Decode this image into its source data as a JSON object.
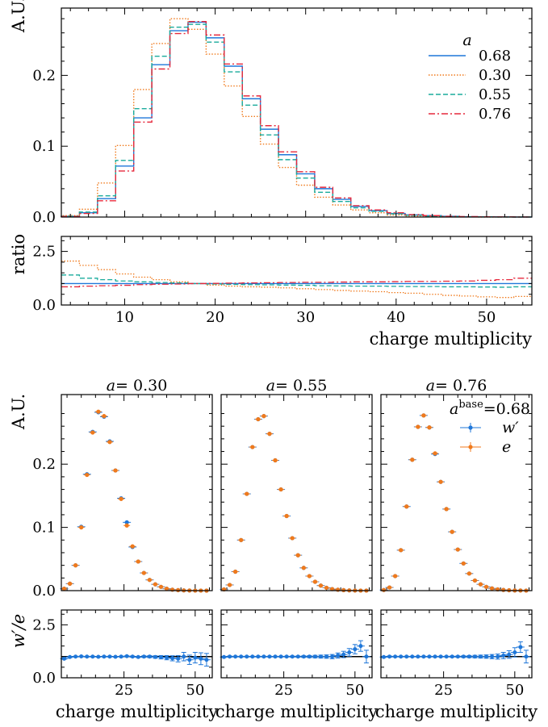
{
  "chart_data": [
    {
      "type": "line",
      "panel": "top",
      "title": "",
      "xlabel": "",
      "ylabel": "A.U.",
      "xlim": [
        3,
        55
      ],
      "ylim": [
        0,
        0.295
      ],
      "yticks": [
        "0.0",
        "0.1",
        "0.2"
      ],
      "ytick_values": [
        0,
        0.1,
        0.2
      ],
      "legend_title": "a",
      "legend_position": "top-right",
      "bin_edges": [
        3,
        5,
        7,
        9,
        11,
        13,
        15,
        17,
        19,
        21,
        23,
        25,
        27,
        29,
        31,
        33,
        35,
        37,
        39,
        41,
        43,
        45,
        47,
        49,
        51,
        53,
        55
      ],
      "series": [
        {
          "name": "0.68",
          "color": "#1f77d9",
          "dash": "",
          "values": [
            0.001,
            0.006,
            0.026,
            0.072,
            0.14,
            0.215,
            0.263,
            0.275,
            0.253,
            0.213,
            0.167,
            0.124,
            0.088,
            0.061,
            0.04,
            0.025,
            0.015,
            0.009,
            0.005,
            0.003,
            0.002,
            0.001,
            0.0005,
            0.0003,
            0.0002,
            0.0001
          ]
        },
        {
          "name": "0.30",
          "color": "#f07a1c",
          "dash": "1.5,2",
          "values": [
            0.002,
            0.011,
            0.048,
            0.101,
            0.18,
            0.245,
            0.28,
            0.265,
            0.23,
            0.185,
            0.142,
            0.103,
            0.07,
            0.045,
            0.028,
            0.017,
            0.01,
            0.006,
            0.003,
            0.0015,
            0.0008,
            0.0004,
            0.0002,
            0.0001,
            5e-05,
            3e-05
          ]
        },
        {
          "name": "0.55",
          "color": "#1aab9c",
          "dash": "6,3",
          "values": [
            0.001,
            0.007,
            0.03,
            0.08,
            0.153,
            0.227,
            0.268,
            0.272,
            0.247,
            0.205,
            0.158,
            0.116,
            0.081,
            0.055,
            0.035,
            0.022,
            0.013,
            0.008,
            0.0045,
            0.0025,
            0.0014,
            0.0008,
            0.0004,
            0.0002,
            0.0001,
            6e-05
          ]
        },
        {
          "name": "0.76",
          "color": "#e6283c",
          "dash": "8,3,2,3",
          "values": [
            0.0008,
            0.005,
            0.023,
            0.065,
            0.134,
            0.209,
            0.259,
            0.276,
            0.257,
            0.216,
            0.171,
            0.129,
            0.092,
            0.064,
            0.042,
            0.027,
            0.016,
            0.01,
            0.006,
            0.0035,
            0.002,
            0.0011,
            0.0006,
            0.0003,
            0.0002,
            0.0001
          ]
        }
      ]
    },
    {
      "type": "line",
      "panel": "ratio",
      "xlabel": "charge multiplicity",
      "ylabel": "ratio",
      "xlim": [
        3,
        55
      ],
      "ylim": [
        0,
        3.2
      ],
      "xticks": [
        "10",
        "20",
        "30",
        "40",
        "50"
      ],
      "xtick_values": [
        10,
        20,
        30,
        40,
        50
      ],
      "yticks": [
        "0.0",
        "2.5"
      ],
      "ytick_values": [
        0,
        2.5
      ],
      "bin_edges": [
        3,
        5,
        7,
        9,
        11,
        13,
        15,
        17,
        19,
        21,
        23,
        25,
        27,
        29,
        31,
        33,
        35,
        37,
        39,
        41,
        43,
        45,
        47,
        49,
        51,
        53,
        55
      ],
      "series": [
        {
          "name": "0.68",
          "color": "#1f77d9",
          "dash": "",
          "values": [
            1,
            1,
            1,
            1,
            1,
            1,
            1,
            1,
            1,
            1,
            1,
            1,
            1,
            1,
            1,
            1,
            1,
            1,
            1,
            1,
            1,
            1,
            1,
            1,
            1,
            1
          ]
        },
        {
          "name": "0.30",
          "color": "#f07a1c",
          "dash": "1.5,2",
          "values": [
            2.05,
            1.85,
            1.65,
            1.45,
            1.3,
            1.18,
            1.08,
            1.0,
            0.93,
            0.88,
            0.85,
            0.83,
            0.8,
            0.76,
            0.72,
            0.68,
            0.65,
            0.62,
            0.58,
            0.55,
            0.5,
            0.45,
            0.42,
            0.38,
            0.35,
            0.4
          ]
        },
        {
          "name": "0.55",
          "color": "#1aab9c",
          "dash": "6,3",
          "values": [
            1.4,
            1.25,
            1.18,
            1.12,
            1.08,
            1.05,
            1.03,
            1.0,
            0.98,
            0.96,
            0.95,
            0.94,
            0.93,
            0.92,
            0.9,
            0.89,
            0.88,
            0.88,
            0.87,
            0.86,
            0.86,
            0.85,
            0.85,
            0.84,
            0.83,
            0.85
          ]
        },
        {
          "name": "0.76",
          "color": "#e6283c",
          "dash": "8,3,2,3",
          "values": [
            0.85,
            0.88,
            0.9,
            0.92,
            0.95,
            0.97,
            0.98,
            1.0,
            1.01,
            1.02,
            1.03,
            1.04,
            1.05,
            1.06,
            1.06,
            1.07,
            1.08,
            1.08,
            1.09,
            1.1,
            1.1,
            1.11,
            1.12,
            1.15,
            1.18,
            1.25
          ]
        }
      ]
    },
    {
      "type": "scatter",
      "panel": "bottom-grid",
      "ylabel": "A.U.",
      "ratio_ylabel": "w′/e",
      "xlabel": "charge multiplicity",
      "xlim": [
        3,
        56
      ],
      "ylim": [
        0,
        0.31
      ],
      "ratio_ylim": [
        0,
        3.2
      ],
      "yticks": [
        "0.0",
        "0.1",
        "0.2"
      ],
      "ytick_values": [
        0,
        0.1,
        0.2
      ],
      "ratio_yticks": [
        "0.0",
        "2.5"
      ],
      "ratio_ytick_values": [
        0,
        2.5
      ],
      "xticks": [
        "25",
        "50"
      ],
      "xtick_values": [
        25,
        50
      ],
      "annotation_prefix": "a",
      "annotation_value": "=0.68",
      "annotation_sup": "base",
      "legend_position": "top-right",
      "legend": [
        {
          "name": "w′",
          "color": "#1f77d9"
        },
        {
          "name": "e",
          "color": "#f07a1c"
        }
      ],
      "x": [
        4,
        6,
        8,
        10,
        12,
        14,
        16,
        18,
        20,
        22,
        24,
        26,
        28,
        30,
        32,
        34,
        36,
        38,
        40,
        42,
        44,
        46,
        48,
        50,
        52,
        54
      ],
      "panels": [
        {
          "title_prefix": "a",
          "title_value": "= 0.30",
          "e": [
            0.003,
            0.011,
            0.04,
            0.1,
            0.183,
            0.25,
            0.283,
            0.276,
            0.235,
            0.19,
            0.145,
            0.103,
            0.07,
            0.046,
            0.028,
            0.017,
            0.01,
            0.006,
            0.003,
            0.0015,
            0.0008,
            0.0004,
            0.0002,
            0.0001,
            5e-05,
            3e-05
          ],
          "w": [
            0.003,
            0.011,
            0.04,
            0.101,
            0.184,
            0.251,
            0.282,
            0.275,
            0.236,
            0.19,
            0.146,
            0.108,
            0.069,
            0.046,
            0.028,
            0.017,
            0.01,
            0.006,
            0.003,
            0.0015,
            0.0008,
            0.0004,
            0.0002,
            0.0001,
            5e-05,
            3e-05
          ],
          "ratio": [
            0.9,
            0.98,
            1.0,
            1.01,
            1.0,
            1.0,
            0.99,
            1.0,
            1.0,
            0.99,
            1.0,
            1.02,
            1.0,
            0.98,
            1.0,
            1.0,
            0.98,
            0.97,
            0.95,
            0.92,
            0.9,
            1.0,
            0.85,
            0.95,
            0.9,
            0.85
          ],
          "ratio_err": [
            0.03,
            0.03,
            0.02,
            0.02,
            0.02,
            0.02,
            0.02,
            0.02,
            0.02,
            0.02,
            0.02,
            0.02,
            0.03,
            0.03,
            0.04,
            0.05,
            0.06,
            0.08,
            0.1,
            0.12,
            0.15,
            0.2,
            0.22,
            0.25,
            0.28,
            0.3
          ]
        },
        {
          "title_prefix": "a",
          "title_value": "= 0.55",
          "e": [
            0.002,
            0.009,
            0.03,
            0.08,
            0.153,
            0.227,
            0.271,
            0.276,
            0.248,
            0.206,
            0.16,
            0.118,
            0.083,
            0.056,
            0.036,
            0.023,
            0.014,
            0.008,
            0.0045,
            0.0025,
            0.0014,
            0.0008,
            0.0004,
            0.0002,
            0.0001,
            6e-05
          ],
          "w": [
            0.002,
            0.009,
            0.03,
            0.08,
            0.153,
            0.227,
            0.271,
            0.276,
            0.248,
            0.206,
            0.16,
            0.118,
            0.083,
            0.056,
            0.036,
            0.023,
            0.014,
            0.008,
            0.0045,
            0.0025,
            0.0014,
            0.0008,
            0.0004,
            0.0002,
            0.0001,
            6e-05
          ],
          "ratio": [
            0.98,
            1.0,
            1.0,
            1.0,
            1.0,
            1.0,
            1.0,
            1.0,
            1.0,
            1.0,
            1.0,
            1.0,
            1.0,
            1.0,
            1.0,
            1.0,
            1.0,
            1.0,
            1.0,
            1.0,
            1.05,
            1.1,
            1.2,
            1.35,
            1.5,
            1.0
          ],
          "ratio_err": [
            0.03,
            0.03,
            0.02,
            0.02,
            0.02,
            0.02,
            0.02,
            0.02,
            0.02,
            0.02,
            0.02,
            0.02,
            0.03,
            0.03,
            0.04,
            0.05,
            0.06,
            0.07,
            0.08,
            0.1,
            0.12,
            0.15,
            0.18,
            0.22,
            0.25,
            0.3
          ]
        },
        {
          "title_prefix": "a",
          "title_value": "= 0.76",
          "e": [
            0.001,
            0.005,
            0.023,
            0.064,
            0.133,
            0.207,
            0.259,
            0.277,
            0.258,
            0.217,
            0.172,
            0.129,
            0.093,
            0.065,
            0.043,
            0.027,
            0.016,
            0.01,
            0.006,
            0.0035,
            0.002,
            0.0011,
            0.0006,
            0.0003,
            0.0002,
            0.0001
          ],
          "w": [
            0.001,
            0.005,
            0.023,
            0.064,
            0.133,
            0.207,
            0.259,
            0.277,
            0.258,
            0.216,
            0.172,
            0.129,
            0.093,
            0.065,
            0.043,
            0.027,
            0.016,
            0.01,
            0.006,
            0.0035,
            0.002,
            0.0011,
            0.0006,
            0.0003,
            0.0002,
            0.0001
          ],
          "ratio": [
            0.98,
            1.0,
            1.0,
            1.0,
            1.0,
            1.0,
            1.0,
            1.0,
            1.0,
            1.0,
            1.0,
            1.0,
            1.0,
            1.0,
            1.0,
            1.0,
            1.0,
            1.0,
            1.0,
            1.0,
            1.0,
            1.05,
            1.1,
            1.2,
            1.45,
            1.0
          ],
          "ratio_err": [
            0.03,
            0.03,
            0.02,
            0.02,
            0.02,
            0.02,
            0.02,
            0.02,
            0.02,
            0.02,
            0.02,
            0.02,
            0.03,
            0.03,
            0.04,
            0.05,
            0.06,
            0.07,
            0.08,
            0.1,
            0.12,
            0.15,
            0.18,
            0.22,
            0.25,
            0.3
          ]
        }
      ]
    }
  ]
}
